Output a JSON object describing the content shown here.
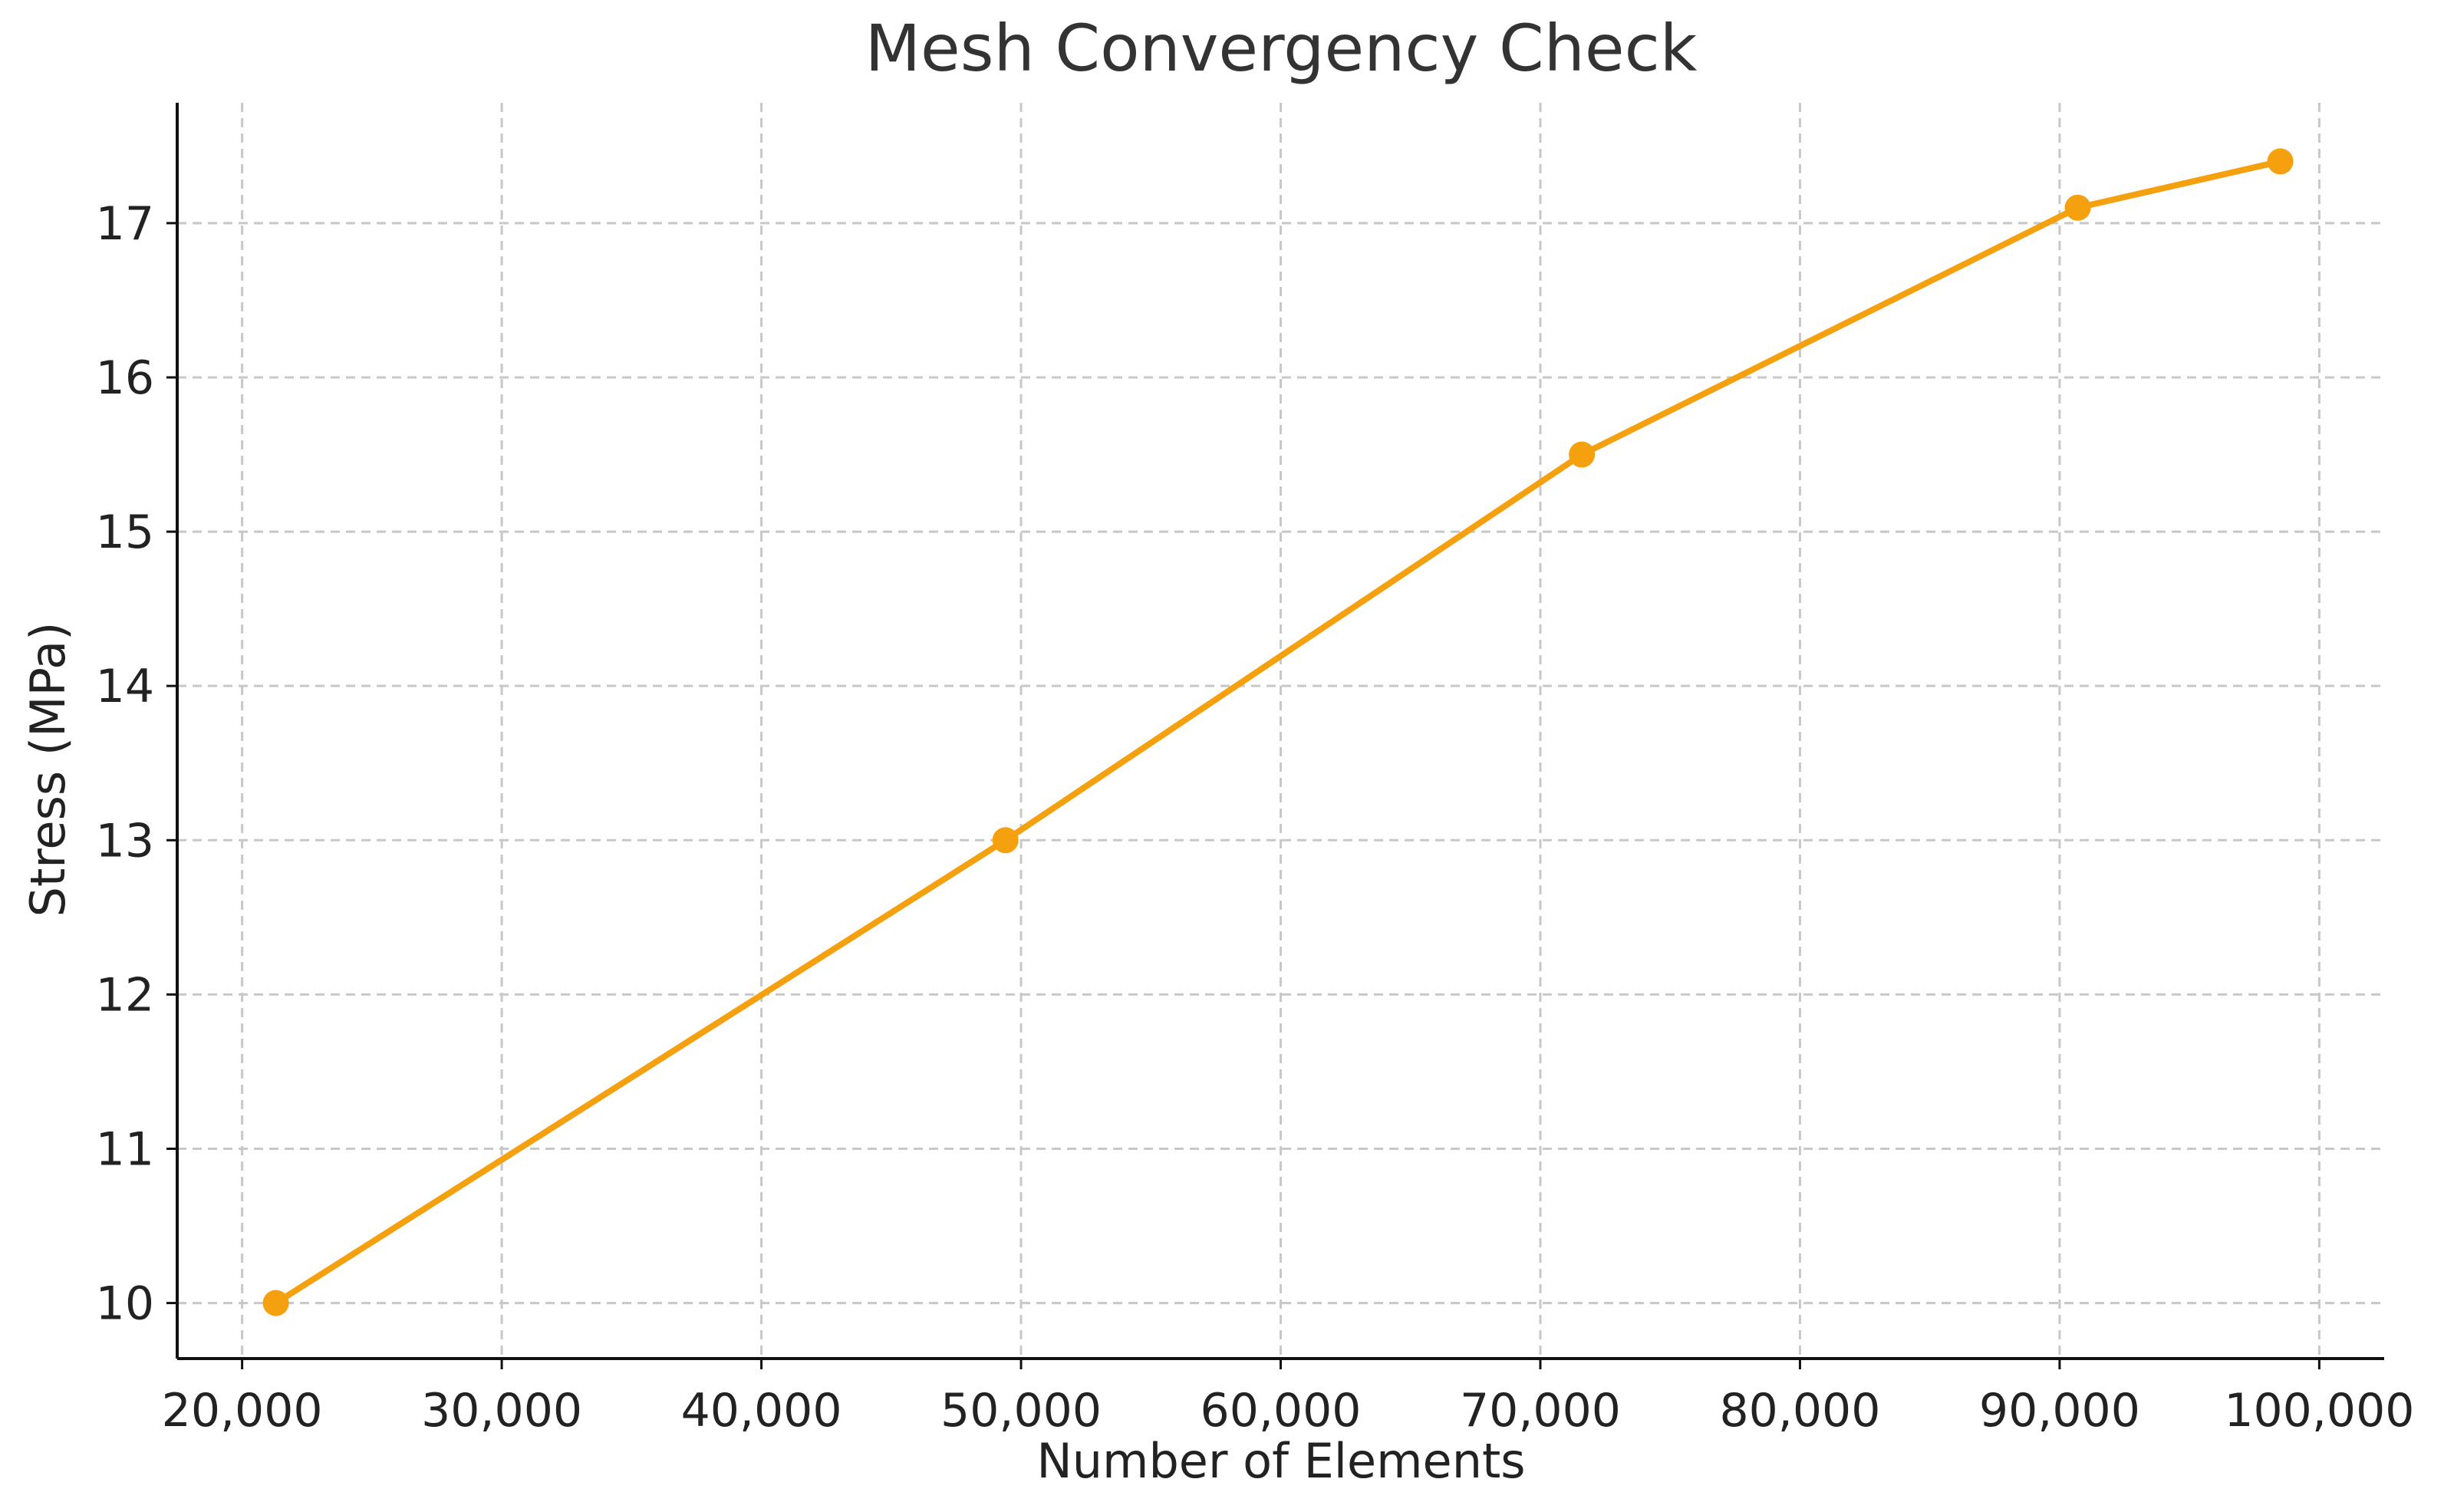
{
  "chart_data": {
    "type": "line",
    "title": "Mesh Convergency Check",
    "xlabel": "Number of Elements",
    "ylabel": "Stress (MPa)",
    "xlim": [
      17500,
      102500
    ],
    "ylim": [
      9.64,
      17.78
    ],
    "x_ticks": [
      20000,
      30000,
      40000,
      50000,
      60000,
      70000,
      80000,
      90000,
      100000
    ],
    "x_tick_labels": [
      "20,000",
      "30,000",
      "40,000",
      "50,000",
      "60,000",
      "70,000",
      "80,000",
      "90,000",
      "100,000"
    ],
    "y_ticks": [
      10,
      11,
      12,
      13,
      14,
      15,
      16,
      17
    ],
    "y_tick_labels": [
      "10",
      "11",
      "12",
      "13",
      "14",
      "15",
      "16",
      "17"
    ],
    "grid": true,
    "grid_style": "dashed",
    "series": [
      {
        "color": "#f5a00f",
        "marker": "circle",
        "x": [
          21300,
          49400,
          71600,
          90700,
          98500
        ],
        "y": [
          10.0,
          13.0,
          15.5,
          17.1,
          17.4
        ]
      }
    ]
  }
}
